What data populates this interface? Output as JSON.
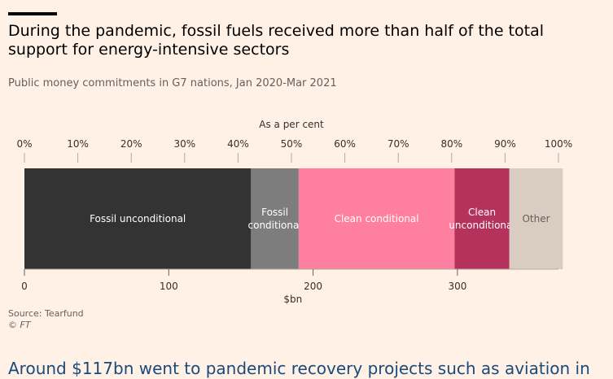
{
  "header": {
    "title": "During the pandemic, fossil fuels received more than half of the total support for energy-intensive sectors",
    "subtitle": "Public money commitments in G7 nations, Jan 2020-Mar 2021"
  },
  "footer": {
    "source": "Source: Tearfund",
    "credit": "© FT",
    "teaser": "Around $117bn went to pandemic recovery projects such as aviation in"
  },
  "chart_data": {
    "type": "bar",
    "orientation": "horizontal",
    "stacked": true,
    "top_axis": {
      "label": "As a per cent",
      "ticks": [
        "0%",
        "10%",
        "20%",
        "30%",
        "40%",
        "50%",
        "60%",
        "70%",
        "80%",
        "90%",
        "100%"
      ],
      "range": [
        0,
        100
      ]
    },
    "bottom_axis": {
      "label": "$bn",
      "ticks": [
        "0",
        "100",
        "200",
        "300"
      ],
      "range": [
        0,
        370
      ]
    },
    "series": [
      {
        "name": "Fossil unconditional",
        "value_bn": 157,
        "label_lines": [
          "Fossil unconditional"
        ],
        "color": "#333333",
        "text_color": "#ffffff"
      },
      {
        "name": "Fossil conditional",
        "value_bn": 33,
        "label_lines": [
          "Fossil",
          "conditional"
        ],
        "color": "#7d7d7d",
        "text_color": "#ffffff"
      },
      {
        "name": "Clean conditional",
        "value_bn": 108,
        "label_lines": [
          "Clean conditional"
        ],
        "color": "#ff7fa1",
        "text_color": "#ffffff"
      },
      {
        "name": "Clean unconditional",
        "value_bn": 38,
        "label_lines": [
          "Clean",
          "unconditional"
        ],
        "color": "#b5325d",
        "text_color": "#ffffff"
      },
      {
        "name": "Other",
        "value_bn": 37,
        "label_lines": [
          "Other"
        ],
        "color": "#d9ccc1",
        "text_color": "#66605c"
      }
    ],
    "grid": false,
    "legend": "none"
  }
}
